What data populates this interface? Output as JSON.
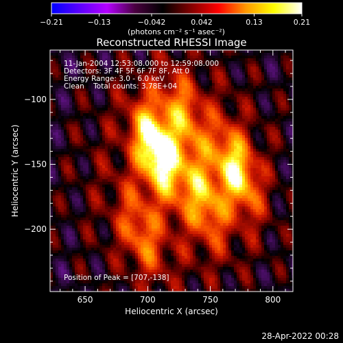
{
  "chart_data": {
    "type": "heatmap",
    "title": "Reconstructed RHESSI Image",
    "xlabel": "Heliocentric X (arcsec)",
    "ylabel": "Heliocentric Y (arcsec)",
    "xlim": [
      622,
      816
    ],
    "ylim": [
      -248,
      -62
    ],
    "x_ticks": [
      650,
      700,
      750,
      800
    ],
    "y_ticks": [
      -100,
      -150,
      -200
    ],
    "colorbar": {
      "label": "(photons cm⁻² s⁻¹ asec⁻²)",
      "min": -0.21,
      "max": 0.21,
      "tick_labels": [
        "−0.21",
        "−0.13",
        "−0.042",
        "0.042",
        "0.13",
        "0.21"
      ],
      "colors": [
        "#0000ff",
        "#5a00ff",
        "#b400ff",
        "#4a0040",
        "#000000",
        "#800000",
        "#ff0000",
        "#ff9900",
        "#ffff00",
        "#ffffff"
      ]
    },
    "annotations": [
      "11-Jan-2004 12:53:08.000 to 12:59:08.000",
      "Detectors: 3F 4F 5F 6F 7F 8F, Att 0",
      "Energy Range: 3.0 - 6.0 keV",
      "Clean    Total counts: 3.78E+04"
    ],
    "peak_label": "Position of Peak = [707,-138]",
    "peak": [
      707,
      -138
    ],
    "sources": [
      {
        "x": 707,
        "y": -138,
        "peak": 0.21
      },
      {
        "x": 771,
        "y": -155,
        "peak": 0.16
      },
      {
        "x": 745,
        "y": -178,
        "peak": 0.11
      },
      {
        "x": 728,
        "y": -110,
        "peak": 0.1
      },
      {
        "x": 695,
        "y": -205,
        "peak": 0.09
      }
    ],
    "grid": false
  },
  "timestamp": "28-Apr-2022 00:28"
}
